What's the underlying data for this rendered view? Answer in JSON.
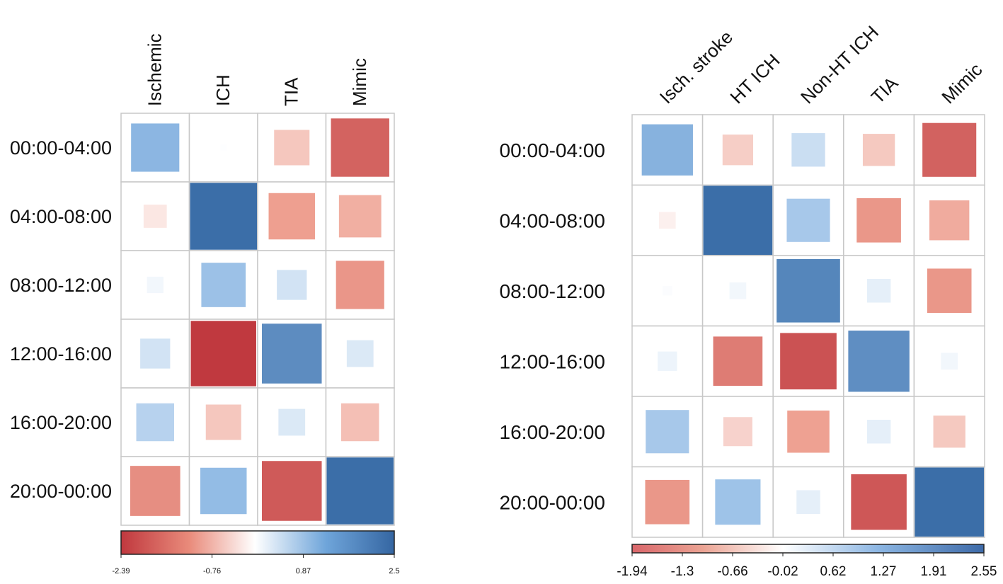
{
  "chart_data": [
    {
      "type": "heatmap",
      "title": "",
      "rows": [
        "00:00-04:00",
        "04:00-08:00",
        "08:00-12:00",
        "12:00-16:00",
        "16:00-20:00",
        "20:00-00:00"
      ],
      "columns": [
        "Ischemic",
        "ICH",
        "TIA",
        "Mimic"
      ],
      "values": [
        [
          1.3,
          0.02,
          -0.7,
          -1.9
        ],
        [
          -0.3,
          2.5,
          -1.2,
          -1.0
        ],
        [
          0.15,
          1.1,
          0.5,
          -1.3
        ],
        [
          0.5,
          -2.39,
          2.0,
          0.4
        ],
        [
          0.8,
          -0.7,
          0.4,
          -0.8
        ],
        [
          -1.4,
          1.2,
          -2.0,
          2.5
        ]
      ],
      "colorbar": {
        "min": -2.39,
        "max": 2.5,
        "tick_labels": [
          "-2.39",
          "-0.76",
          "0.87",
          "2.5"
        ]
      }
    },
    {
      "type": "heatmap",
      "title": "",
      "rows": [
        "00:00-04:00",
        "04:00-08:00",
        "08:00-12:00",
        "12:00-16:00",
        "16:00-20:00",
        "20:00-00:00"
      ],
      "columns": [
        "Isch. stroke",
        "HT ICH",
        "Non-HT ICH",
        "TIA",
        "Mimic"
      ],
      "values": [
        [
          1.4,
          -0.5,
          0.6,
          -0.55,
          -1.55
        ],
        [
          -0.15,
          2.55,
          1.0,
          -1.05,
          -0.85
        ],
        [
          0.05,
          0.15,
          2.15,
          0.3,
          -1.05
        ],
        [
          0.2,
          -1.3,
          -1.7,
          2.0,
          0.15
        ],
        [
          1.0,
          -0.45,
          -0.95,
          0.3,
          -0.55
        ],
        [
          -1.05,
          1.1,
          0.3,
          -1.65,
          2.55
        ]
      ],
      "colorbar": {
        "min": -1.94,
        "max": 2.55,
        "tick_labels": [
          "-1.94",
          "-1.3",
          "-0.66",
          "-0.02",
          "0.62",
          "1.27",
          "1.91",
          "2.55"
        ]
      }
    }
  ]
}
